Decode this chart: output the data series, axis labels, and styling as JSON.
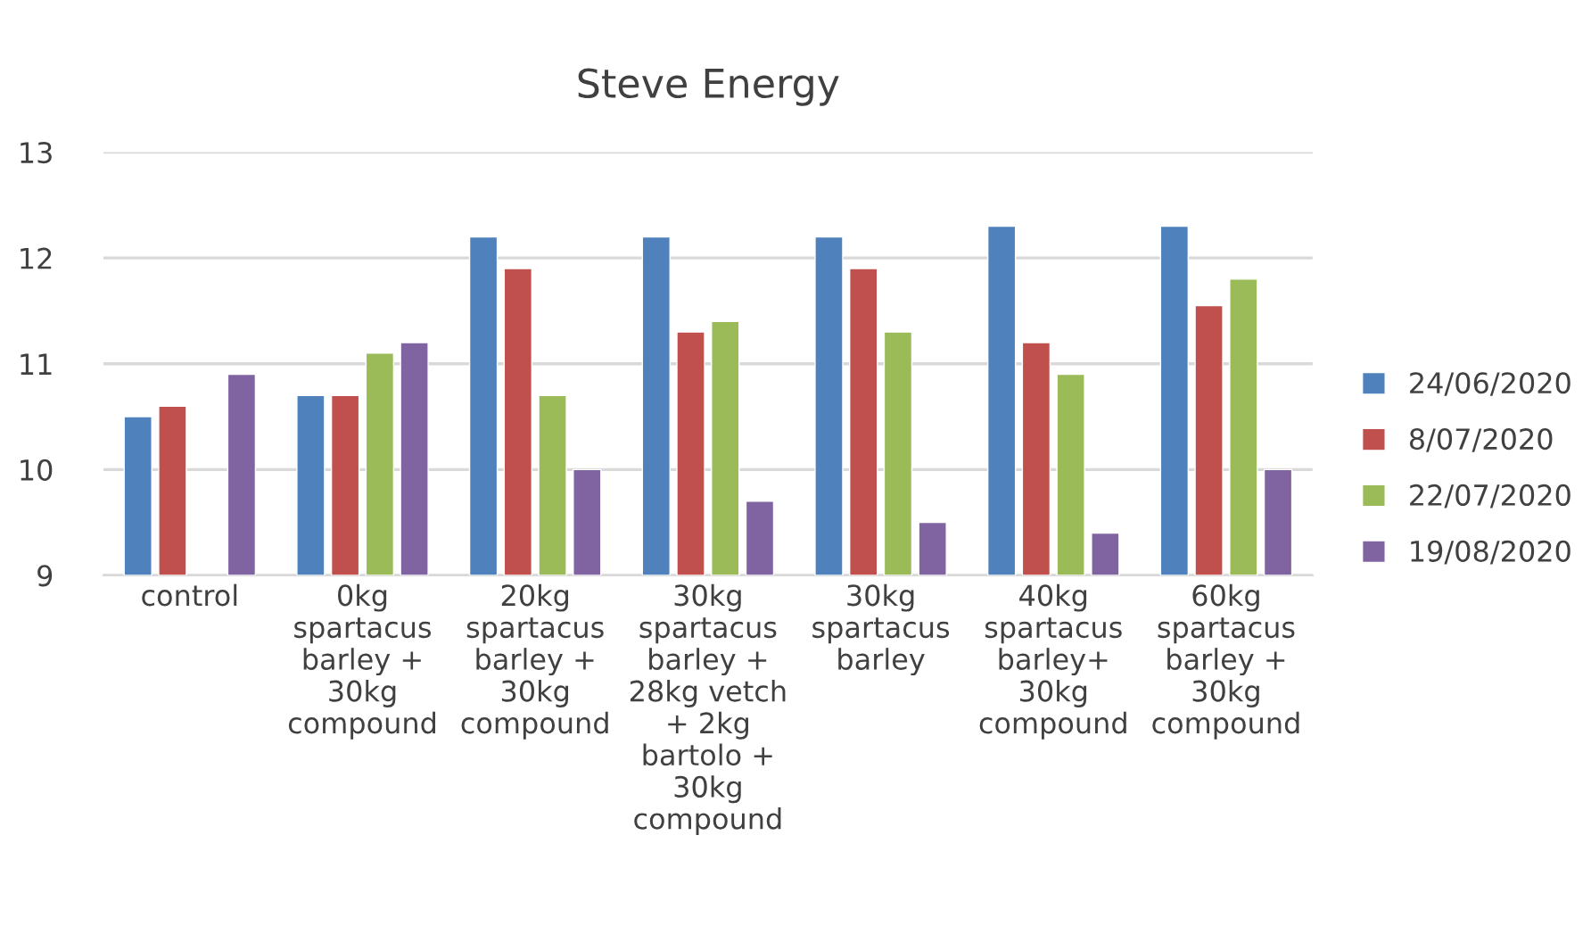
{
  "chart_data": {
    "type": "bar",
    "title": "Steve Energy",
    "categories": [
      "control",
      "0kg\nspartacus\nbarley +\n30kg\ncompound",
      "20kg\nspartacus\nbarley +\n30kg\ncompound",
      "30kg\nspartacus\nbarley +\n28kg vetch\n+ 2kg\nbartolo +\n30kg\ncompound",
      "30kg\nspartacus\nbarley",
      "40kg\nspartacus\nbarley+\n30kg\ncompound",
      "60kg\nspartacus\nbarley +\n30kg\ncompound"
    ],
    "series": [
      {
        "name": "24/06/2020",
        "color": "#4f81bd",
        "values": [
          10.5,
          10.7,
          12.2,
          12.2,
          12.2,
          12.3,
          12.3
        ]
      },
      {
        "name": "8/07/2020",
        "color": "#c0504d",
        "values": [
          10.6,
          10.7,
          11.9,
          11.3,
          11.9,
          11.2,
          11.55
        ]
      },
      {
        "name": "22/07/2020",
        "color": "#9bbb59",
        "values": [
          null,
          11.1,
          10.7,
          11.4,
          11.3,
          10.9,
          11.8
        ]
      },
      {
        "name": "19/08/2020",
        "color": "#8064a2",
        "values": [
          10.9,
          11.2,
          10.0,
          9.7,
          9.5,
          9.4,
          10.0
        ]
      }
    ],
    "ylim": [
      9,
      13
    ],
    "yticks": [
      9,
      10,
      11,
      12,
      13
    ],
    "grid": "y",
    "legend": "right"
  }
}
